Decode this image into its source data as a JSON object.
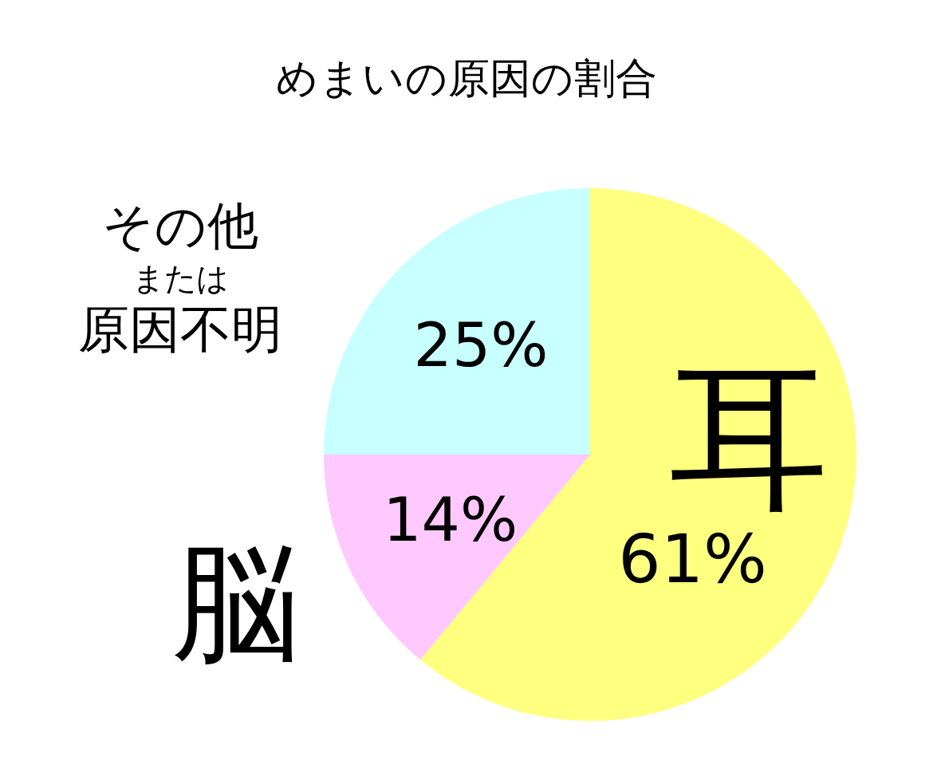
{
  "chart_data": {
    "type": "pie",
    "title": "めまいの原因の割合",
    "categories": [
      "耳",
      "脳",
      "その他または原因不明"
    ],
    "values": [
      61,
      14,
      25
    ],
    "colors": [
      "#ffff80",
      "#ffc8ff",
      "#c8ffff"
    ],
    "value_labels": [
      "61%",
      "14%",
      "25%"
    ]
  }
}
